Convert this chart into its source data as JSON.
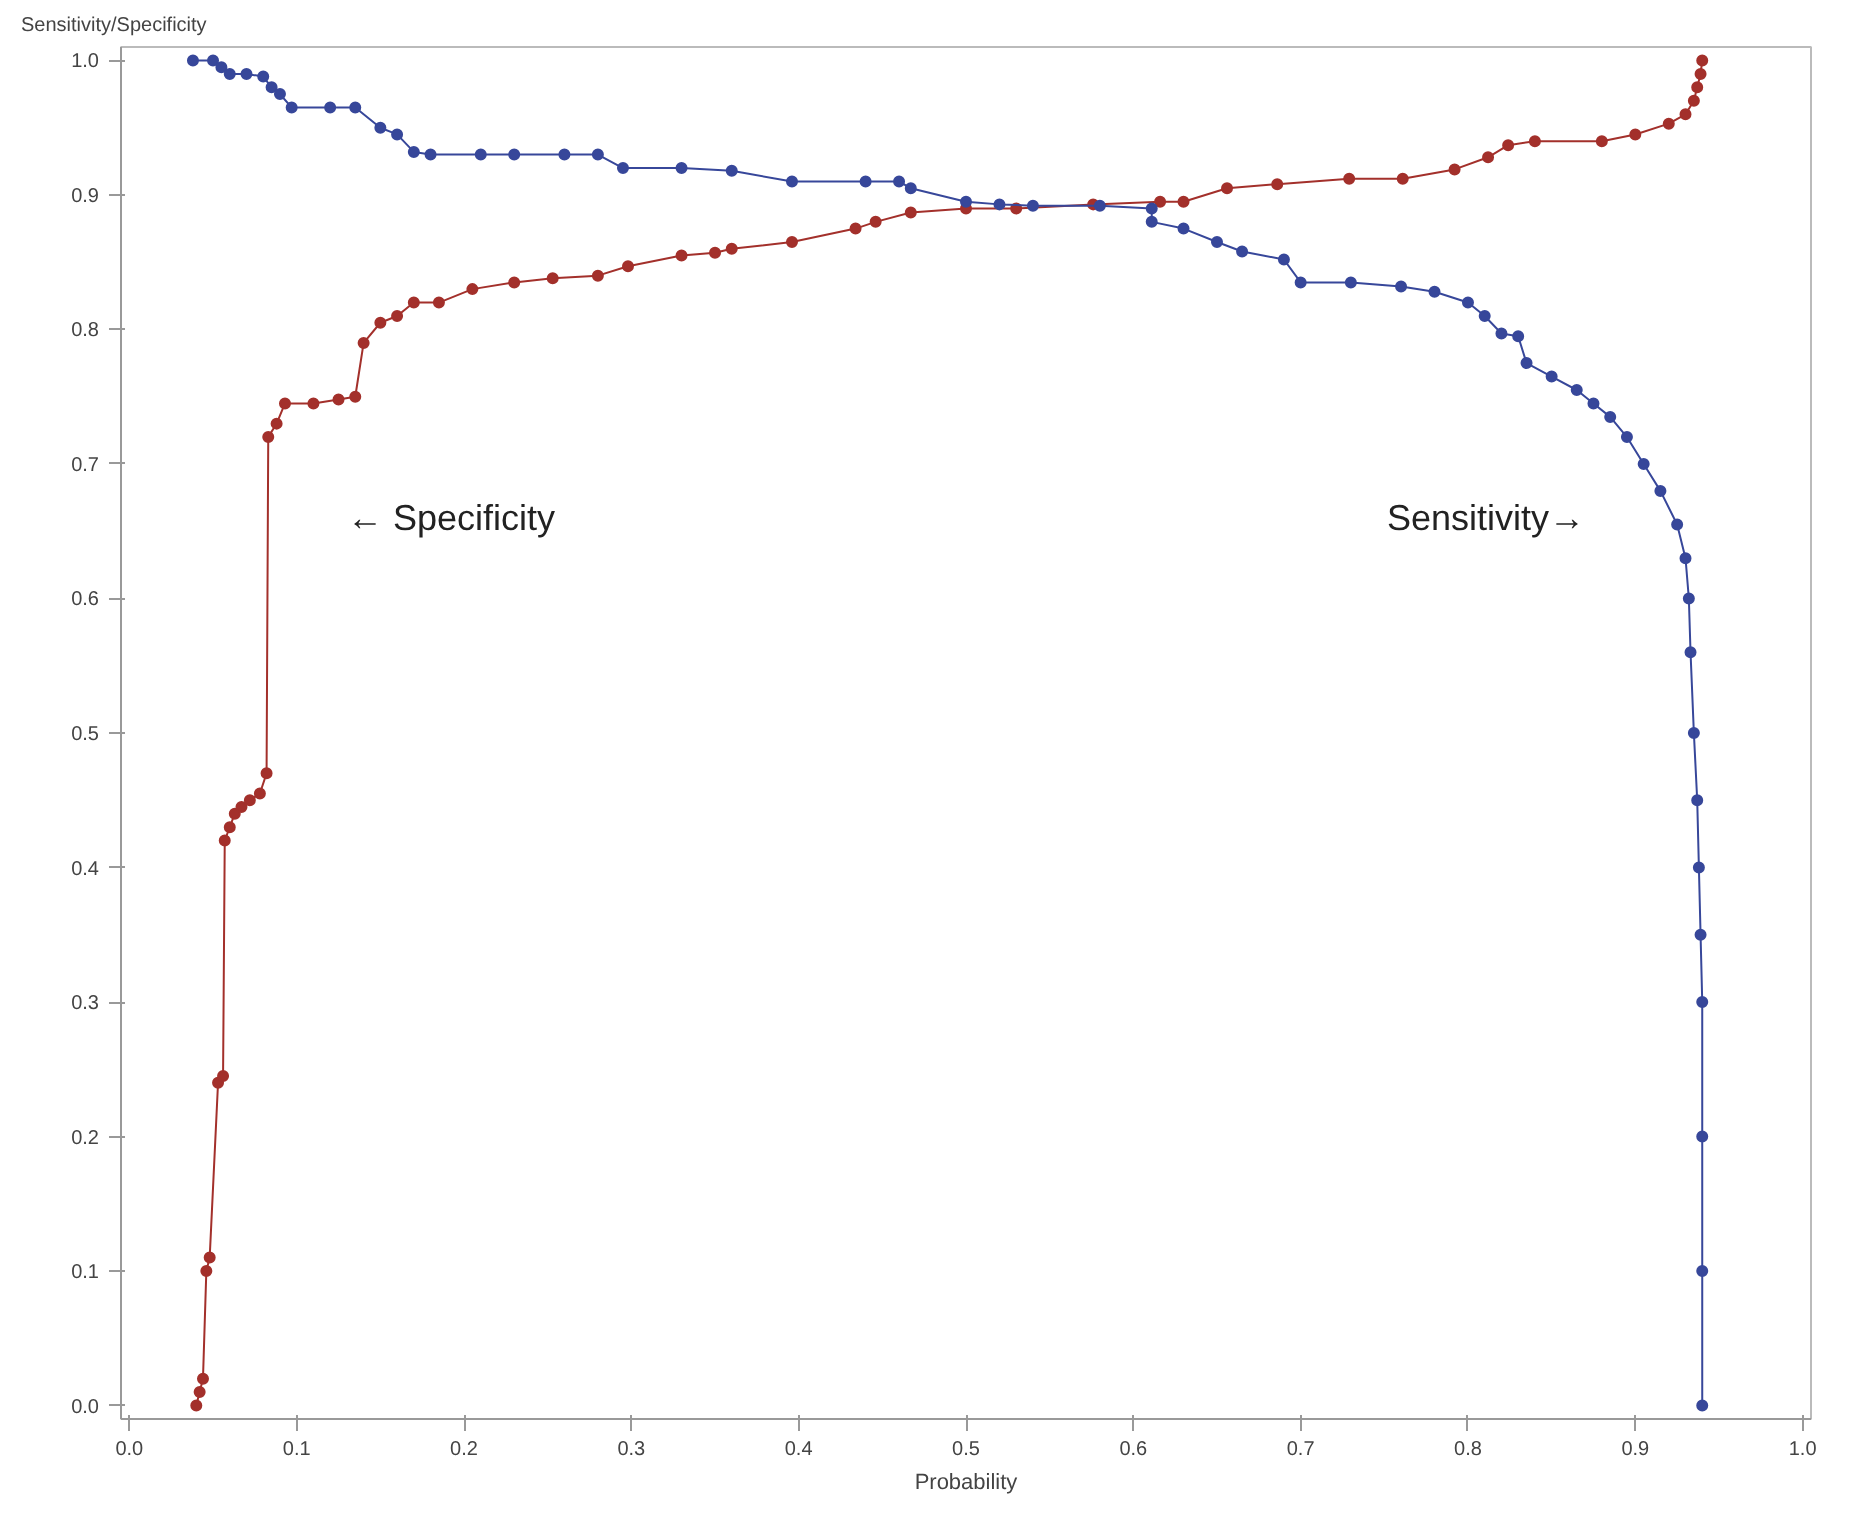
{
  "chart_data": {
    "type": "line",
    "xlabel": "Probability",
    "ylabel": "Sensitivity/Specificity",
    "xlim": [
      -0.005,
      1.005
    ],
    "ylim": [
      -0.01,
      1.01
    ],
    "xticks": [
      {
        "value": 0,
        "label": "0.0"
      },
      0.1,
      0.2,
      0.3,
      0.4,
      0.5,
      0.6,
      0.7,
      0.8,
      0.9,
      {
        "value": 1,
        "label": "1.0"
      }
    ],
    "yticks": [
      {
        "value": 0,
        "label": "0.0"
      },
      0.1,
      0.2,
      0.3,
      0.4,
      0.5,
      0.6,
      0.7,
      0.8,
      0.9,
      {
        "value": 1,
        "label": "1.0"
      }
    ],
    "grid": false,
    "legend": false,
    "marker": "circle",
    "line_style": "solid",
    "series": [
      {
        "name": "← Specificity",
        "color": "#a3302b",
        "x": [
          0.04,
          0.042,
          0.044,
          0.046,
          0.048,
          0.053,
          0.056,
          0.057,
          0.06,
          0.063,
          0.067,
          0.072,
          0.078,
          0.082,
          0.083,
          0.088,
          0.093,
          0.11,
          0.125,
          0.135,
          0.14,
          0.15,
          0.16,
          0.17,
          0.185,
          0.205,
          0.23,
          0.253,
          0.28,
          0.298,
          0.33,
          0.35,
          0.36,
          0.396,
          0.434,
          0.446,
          0.467,
          0.5,
          0.53,
          0.576,
          0.616,
          0.63,
          0.656,
          0.686,
          0.729,
          0.761,
          0.792,
          0.812,
          0.824,
          0.84,
          0.88,
          0.9,
          0.92,
          0.93,
          0.935,
          0.937,
          0.939,
          0.94
        ],
        "values": [
          0.0,
          0.01,
          0.02,
          0.1,
          0.11,
          0.24,
          0.245,
          0.42,
          0.43,
          0.44,
          0.445,
          0.45,
          0.455,
          0.47,
          0.72,
          0.73,
          0.745,
          0.745,
          0.748,
          0.75,
          0.79,
          0.805,
          0.81,
          0.82,
          0.82,
          0.83,
          0.835,
          0.838,
          0.84,
          0.847,
          0.855,
          0.857,
          0.86,
          0.865,
          0.875,
          0.88,
          0.887,
          0.89,
          0.89,
          0.893,
          0.895,
          0.895,
          0.905,
          0.908,
          0.912,
          0.912,
          0.919,
          0.928,
          0.937,
          0.94,
          0.94,
          0.945,
          0.953,
          0.96,
          0.97,
          0.98,
          0.99,
          1.0
        ]
      },
      {
        "name": "Sensitivity→",
        "color": "#37479a",
        "x": [
          0.038,
          0.05,
          0.055,
          0.06,
          0.07,
          0.08,
          0.085,
          0.09,
          0.097,
          0.12,
          0.135,
          0.15,
          0.16,
          0.17,
          0.18,
          0.21,
          0.23,
          0.26,
          0.28,
          0.295,
          0.33,
          0.36,
          0.396,
          0.44,
          0.46,
          0.467,
          0.5,
          0.52,
          0.54,
          0.58,
          0.611,
          0.611,
          0.63,
          0.65,
          0.665,
          0.69,
          0.7,
          0.73,
          0.76,
          0.78,
          0.8,
          0.81,
          0.82,
          0.83,
          0.835,
          0.85,
          0.865,
          0.875,
          0.885,
          0.895,
          0.905,
          0.915,
          0.925,
          0.93,
          0.932,
          0.933,
          0.935,
          0.937,
          0.938,
          0.939,
          0.94,
          0.94,
          0.94,
          0.94
        ],
        "values": [
          1.0,
          1.0,
          0.995,
          0.99,
          0.99,
          0.988,
          0.98,
          0.975,
          0.965,
          0.965,
          0.965,
          0.95,
          0.945,
          0.932,
          0.93,
          0.93,
          0.93,
          0.93,
          0.93,
          0.92,
          0.92,
          0.918,
          0.91,
          0.91,
          0.91,
          0.905,
          0.895,
          0.893,
          0.892,
          0.892,
          0.89,
          0.88,
          0.875,
          0.865,
          0.858,
          0.852,
          0.835,
          0.835,
          0.832,
          0.828,
          0.82,
          0.81,
          0.797,
          0.795,
          0.775,
          0.765,
          0.755,
          0.745,
          0.735,
          0.72,
          0.7,
          0.68,
          0.655,
          0.63,
          0.6,
          0.56,
          0.5,
          0.45,
          0.4,
          0.35,
          0.3,
          0.2,
          0.1,
          0.0
        ]
      }
    ]
  }
}
